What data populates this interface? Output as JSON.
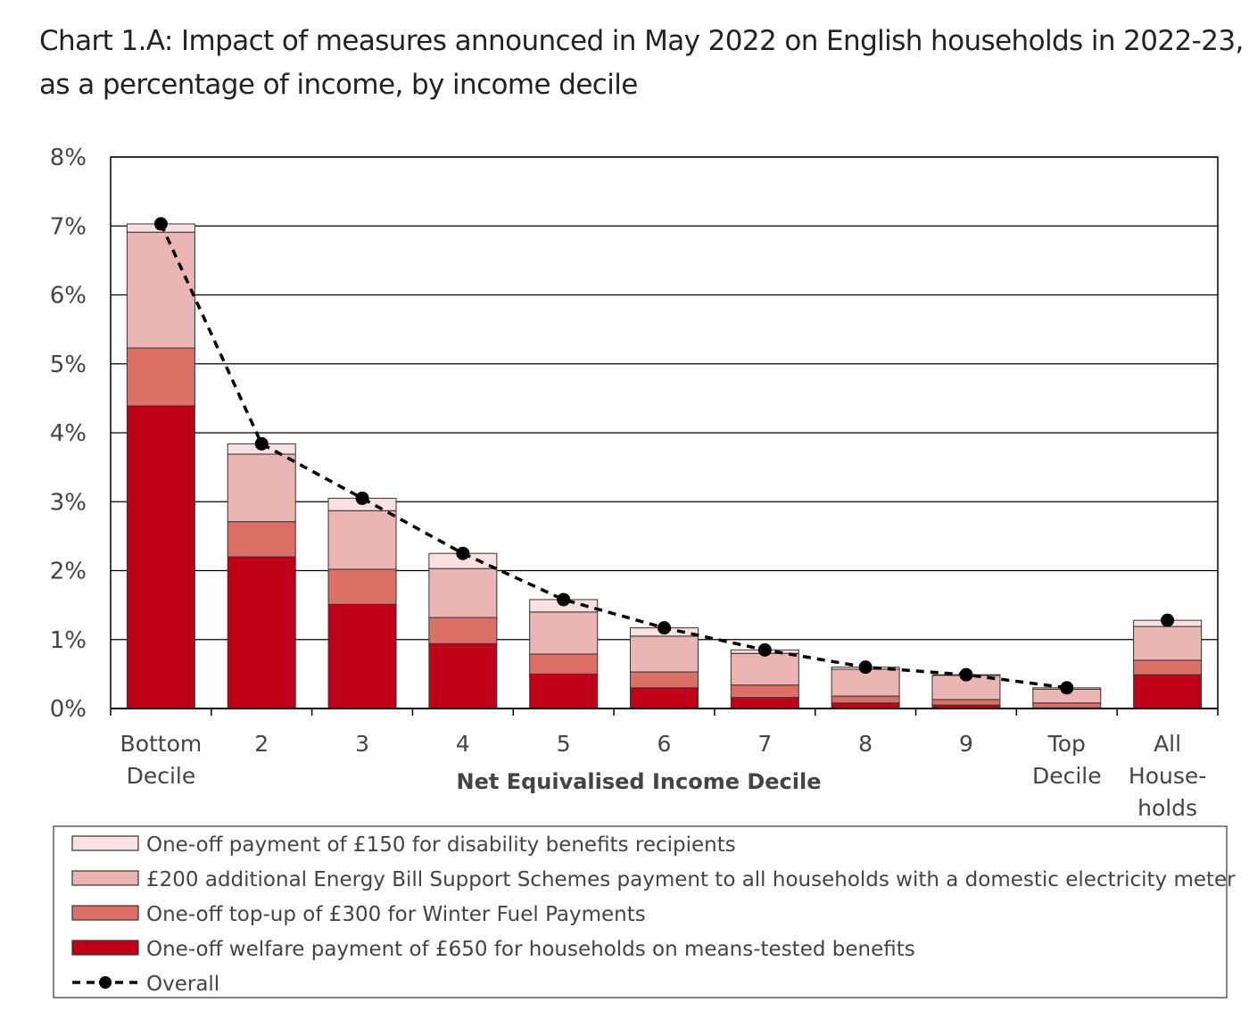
{
  "chart_data": {
    "type": "bar",
    "stacked": true,
    "title": "Chart 1.A: Impact of measures announced in May 2022 on English households in 2022-23, as a percentage of income, by income decile",
    "xlabel": "Net Equivalised Income Decile",
    "ylabel": "",
    "ylim": [
      0,
      8
    ],
    "yticks": [
      "0%",
      "1%",
      "2%",
      "3%",
      "4%",
      "5%",
      "6%",
      "7%",
      "8%"
    ],
    "grid": true,
    "legend_position": "bottom",
    "categories": [
      [
        "Bottom",
        "Decile"
      ],
      [
        "2"
      ],
      [
        "3"
      ],
      [
        "4"
      ],
      [
        "5"
      ],
      [
        "6"
      ],
      [
        "7"
      ],
      [
        "8"
      ],
      [
        "9"
      ],
      [
        "Top",
        "Decile"
      ],
      [
        "All",
        "House-",
        "holds"
      ]
    ],
    "series": [
      {
        "name": "One-off welfare payment of £650 for households on means-tested benefits",
        "color": "#c00018",
        "values": [
          4.39,
          2.2,
          1.51,
          0.94,
          0.5,
          0.3,
          0.16,
          0.08,
          0.05,
          0.01,
          0.49
        ]
      },
      {
        "name": "One-off  top-up of £300 for Winter Fuel Payments",
        "color": "#dd7066",
        "values": [
          0.84,
          0.51,
          0.51,
          0.38,
          0.29,
          0.23,
          0.18,
          0.1,
          0.08,
          0.07,
          0.21
        ]
      },
      {
        "name": "£200 additional Energy Bill Support Schemes payment to all households with a domestic electricity meter",
        "color": "#ebb5b3",
        "values": [
          1.68,
          0.98,
          0.85,
          0.71,
          0.61,
          0.52,
          0.46,
          0.39,
          0.35,
          0.2,
          0.49
        ]
      },
      {
        "name": "One-off payment of £150 for  disability benefits  recipients",
        "color": "#f9e1e1",
        "values": [
          0.12,
          0.15,
          0.18,
          0.22,
          0.18,
          0.12,
          0.05,
          0.03,
          0.01,
          0.02,
          0.09
        ]
      }
    ],
    "line": {
      "name": "Overall",
      "color": "#000000",
      "style": "dashed",
      "values": [
        7.03,
        3.84,
        3.05,
        2.25,
        1.58,
        1.17,
        0.85,
        0.6,
        0.49,
        0.3,
        1.28
      ]
    }
  }
}
